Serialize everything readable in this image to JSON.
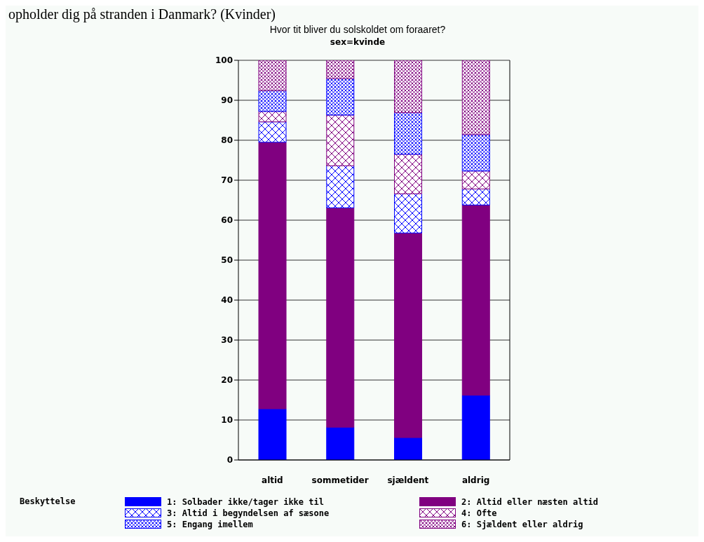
{
  "chart_data": {
    "type": "bar",
    "title": "Hvor tit bliver du solskoldet om foraaret?",
    "subtitle": "sex=kvinde",
    "annotations": [
      "opholder dig på stranden i Danmark?  (Kvinder)"
    ],
    "categories": [
      "altid",
      "sommetider",
      "sjældent",
      "aldrig"
    ],
    "stacked": true,
    "legend_title": "Beskyttelse",
    "legend": "bottom",
    "grid": "y",
    "ylim": [
      0,
      100
    ],
    "yticks": [
      0,
      10,
      20,
      30,
      40,
      50,
      60,
      70,
      80,
      90,
      100
    ],
    "series": [
      {
        "name": "1: Solbader ikke/tager ikke til",
        "color": "#0000ff",
        "values": [
          12.8,
          8.2,
          5.6,
          16.2
        ]
      },
      {
        "name": "2: Altid eller næsten altid",
        "color": "#800080",
        "values": [
          66.7,
          54.9,
          51.2,
          47.6
        ]
      },
      {
        "name": "3: Altid i begyndelsen af sæsone",
        "color": "#0000ff",
        "values": [
          5.1,
          10.5,
          9.8,
          4.0
        ]
      },
      {
        "name": "4: Ofte",
        "color": "#800080",
        "values": [
          2.6,
          12.7,
          9.9,
          4.5
        ]
      },
      {
        "name": "5: Engang imellem",
        "color": "#0000ff",
        "values": [
          5.2,
          9.1,
          10.4,
          9.1
        ]
      },
      {
        "name": "6: Sjældent eller aldrig",
        "color": "#800080",
        "values": [
          7.6,
          4.6,
          13.1,
          18.6
        ]
      }
    ]
  }
}
